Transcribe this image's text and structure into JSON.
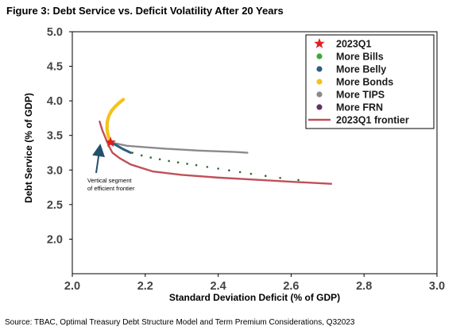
{
  "title": "Figure 3: Debt Service vs. Deficit Volatility After 20 Years",
  "source": "Source: TBAC, Optimal Treasury Debt Structure Model and Term Premium Considerations, Q32023",
  "colors": {
    "star": "#e02020",
    "bills": "#3aaa3a",
    "bills_path": "#2f6a2f",
    "belly": "#2a5f86",
    "bonds": "#f5c21a",
    "tips": "#8a8a8a",
    "frn": "#6b2c6b",
    "frontier": "#c0505a",
    "annotation_arrow": "#23506b"
  },
  "chart_data": {
    "type": "scatter",
    "title": "",
    "xlabel": "Standard Deviation Deficit (% of GDP)",
    "ylabel": "Debt Service (% of GDP)",
    "xlim": [
      2.0,
      3.0
    ],
    "ylim": [
      1.5,
      5.0
    ],
    "x_ticks": [
      "2.0",
      "2.2",
      "2.4",
      "2.6",
      "2.8",
      "3.0"
    ],
    "y_ticks": [
      "2.0",
      "2.5",
      "3.0",
      "3.5",
      "4.0",
      "4.5",
      "5.0"
    ],
    "legend_position": "top-right",
    "series": [
      {
        "name": "2023Q1",
        "x": [
          2.105
        ],
        "y": [
          3.4
        ]
      },
      {
        "name": "More Bills",
        "x": [
          2.165,
          2.19,
          2.215,
          2.24,
          2.265,
          2.29,
          2.315,
          2.34,
          2.37,
          2.4,
          2.43,
          2.46,
          2.49,
          2.53,
          2.57,
          2.62
        ],
        "y": [
          3.25,
          3.21,
          3.18,
          3.155,
          3.13,
          3.11,
          3.09,
          3.07,
          3.045,
          3.02,
          2.995,
          2.97,
          2.945,
          2.915,
          2.885,
          2.855
        ]
      },
      {
        "name": "More Belly",
        "x": [
          2.105,
          2.12,
          2.14,
          2.16
        ],
        "y": [
          3.4,
          3.36,
          3.3,
          3.25
        ]
      },
      {
        "name": "More Bonds",
        "x": [
          2.105,
          2.098,
          2.095,
          2.096,
          2.1,
          2.108,
          2.118,
          2.128,
          2.14
        ],
        "y": [
          3.4,
          3.5,
          3.6,
          3.7,
          3.78,
          3.86,
          3.92,
          3.97,
          4.02
        ]
      },
      {
        "name": "More TIPS",
        "x": [
          2.105,
          2.15,
          2.2,
          2.25,
          2.3,
          2.35,
          2.4,
          2.45,
          2.48
        ],
        "y": [
          3.4,
          3.35,
          3.33,
          3.31,
          3.295,
          3.28,
          3.27,
          3.26,
          3.25
        ]
      },
      {
        "name": "More FRN",
        "x": [],
        "y": []
      },
      {
        "name": "2023Q1 frontier",
        "x": [
          2.075,
          2.082,
          2.092,
          2.1,
          2.11,
          2.13,
          2.16,
          2.22,
          2.3,
          2.4,
          2.5,
          2.6,
          2.71
        ],
        "y": [
          3.7,
          3.58,
          3.45,
          3.35,
          3.25,
          3.17,
          3.08,
          2.98,
          2.93,
          2.89,
          2.86,
          2.83,
          2.8
        ]
      }
    ],
    "annotations": [
      {
        "text": "Vertical segment of efficient frontier",
        "lines": [
          "Vertical segment",
          "of efficient frontier"
        ],
        "points_to": {
          "x": 2.078,
          "y": 3.45
        }
      }
    ]
  }
}
